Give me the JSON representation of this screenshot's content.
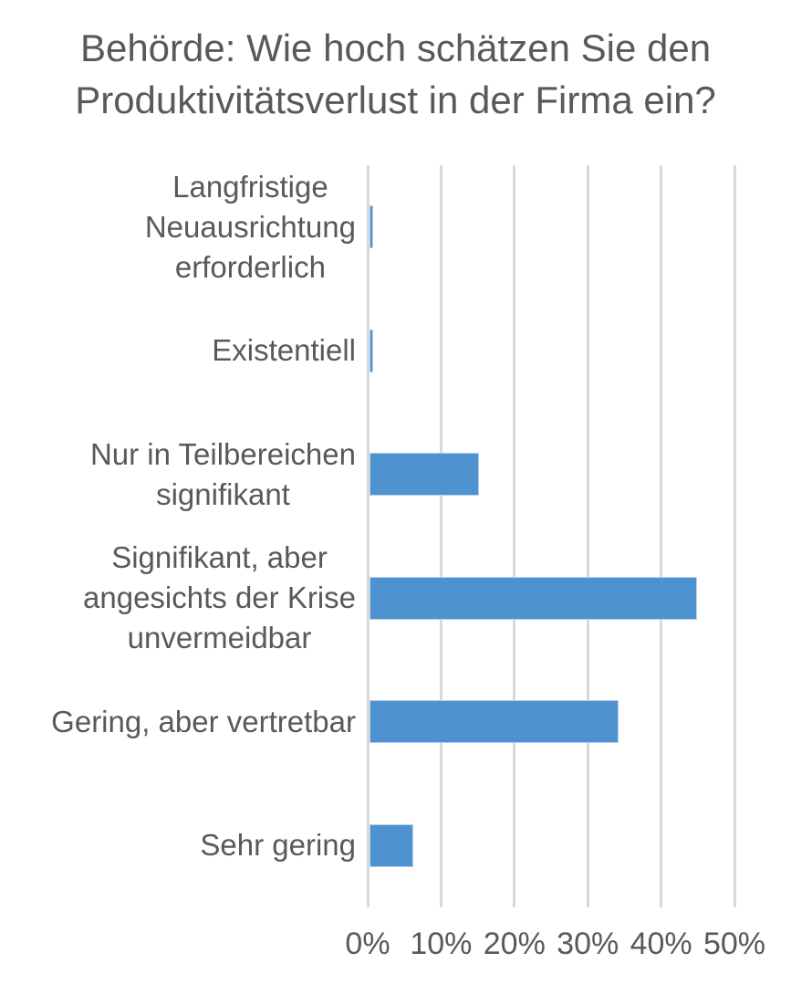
{
  "title": {
    "full": "Behörde: Wie hoch schätzen Sie den Produktivitätsverlust in der Firma ein?",
    "line1": "Behörde: Wie hoch schätzen Sie den",
    "line2": "Produktivitätsverlust in der Firma ein?"
  },
  "colors": {
    "text": "#595959",
    "gridline": "#d9d9d9",
    "bar": "#4e93d0",
    "bar_border": "#b4d2ee",
    "background": "#ffffff"
  },
  "chart_data": {
    "type": "bar",
    "orientation": "horizontal",
    "title": "Behörde: Wie hoch schätzen Sie den Produktivitätsverlust in der Firma ein?",
    "categories": [
      "Langfristige Neuausrichtung erforderlich",
      "Existentiell",
      "Nur in Teilbereichen signifikant",
      "Signifikant, aber angesichts der Krise unvermeidbar",
      "Gering, aber vertretbar",
      "Sehr gering"
    ],
    "values": [
      0.5,
      0.5,
      14.9,
      44.7,
      34.0,
      6.0
    ],
    "unit": "percent",
    "xlabel": "",
    "ylabel": "",
    "xlim": [
      0,
      50
    ],
    "x_tick_values": [
      0,
      10,
      20,
      30,
      40,
      50
    ],
    "x_ticks": [
      "0%",
      "10%",
      "20%",
      "30%",
      "40%",
      "50%"
    ],
    "grid": "vertical",
    "legend": false,
    "category_display_lines": [
      [
        "Langfristige",
        "Neuausrichtung",
        "erforderlich"
      ],
      [
        "Existentiell"
      ],
      [
        "Nur in Teilbereichen",
        "signifikant"
      ],
      [
        "Signifikant, aber",
        "angesichts der Krise",
        "unvermeidbar"
      ],
      [
        "Gering, aber vertretbar"
      ],
      [
        "Sehr gering"
      ]
    ]
  }
}
